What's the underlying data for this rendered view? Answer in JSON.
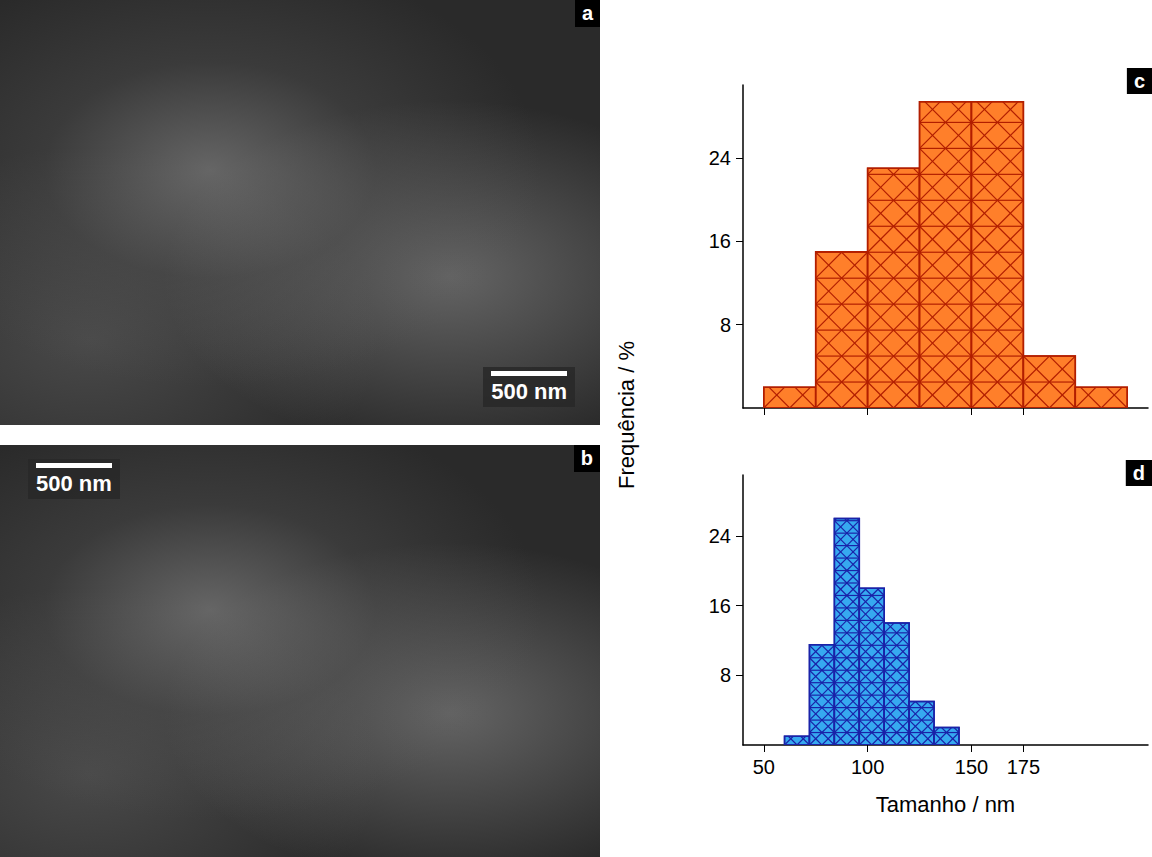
{
  "images": [
    {
      "letter": "a",
      "scale_bar": "500 nm"
    },
    {
      "letter": "b",
      "scale_bar": "500 nm"
    }
  ],
  "ylabel": "Frequência / %",
  "chart_data": [
    {
      "type": "histogram",
      "letter": "c",
      "bins": [
        50,
        75,
        100,
        125,
        150,
        175,
        200,
        225
      ],
      "values": [
        2,
        15,
        23,
        29.4,
        29.4,
        5,
        2
      ],
      "color": "#ff7f2a",
      "xlim": [
        40,
        235
      ],
      "xticks": [
        50,
        100,
        150,
        175
      ],
      "ylim": [
        0,
        31
      ],
      "yticks": [
        8,
        16,
        24
      ],
      "tick_labels": "y"
    },
    {
      "type": "histogram",
      "letter": "d",
      "bins": [
        60,
        72,
        84,
        96,
        108,
        120,
        132,
        144
      ],
      "values": [
        1,
        11.5,
        26,
        18,
        14,
        5,
        2
      ],
      "color": "#36a9f0",
      "xlabel": "Tamanho / nm",
      "xlim": [
        40,
        235
      ],
      "xticks": [
        50,
        100,
        150,
        175
      ],
      "ylim": [
        0,
        31
      ],
      "yticks": [
        8,
        16,
        24
      ]
    }
  ]
}
